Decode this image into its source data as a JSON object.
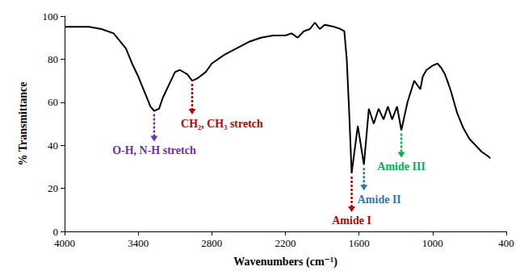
{
  "chart_data": {
    "type": "line",
    "x_label": "Wavenumbers (cm⁻¹)",
    "y_label": "% Transmittance",
    "color": "#000000",
    "x": [
      4000,
      3800,
      3700,
      3600,
      3500,
      3450,
      3400,
      3350,
      3300,
      3270,
      3230,
      3200,
      3150,
      3100,
      3060,
      3000,
      2960,
      2920,
      2850,
      2800,
      2700,
      2600,
      2500,
      2400,
      2300,
      2200,
      2150,
      2100,
      2050,
      2000,
      1960,
      1920,
      1880,
      1800,
      1750,
      1720,
      1700,
      1680,
      1660,
      1610,
      1560,
      1520,
      1480,
      1440,
      1400,
      1365,
      1330,
      1290,
      1255,
      1205,
      1150,
      1100,
      1080,
      1050,
      1000,
      960,
      930,
      900,
      880,
      850,
      800,
      750,
      700,
      650,
      600,
      550,
      530
    ],
    "values": [
      95,
      95,
      94,
      92,
      85,
      78,
      72,
      65,
      58,
      56,
      57,
      62,
      68,
      74,
      75,
      73,
      70,
      71,
      74,
      78,
      82,
      85,
      88,
      90,
      91,
      91,
      92,
      90,
      93,
      94,
      97,
      94,
      96,
      95,
      94,
      93,
      80,
      55,
      27,
      49,
      31,
      57,
      50,
      57,
      52,
      58,
      52,
      58,
      47,
      60,
      70,
      66,
      72,
      75,
      77,
      78,
      76,
      73,
      70,
      65,
      55,
      48,
      43,
      40,
      37,
      35,
      34
    ],
    "xlim": [
      4000,
      400
    ],
    "xticks": [
      4000,
      3400,
      2800,
      2200,
      1600,
      1000,
      400
    ],
    "ylim": [
      0,
      100
    ],
    "yticks": [
      0,
      20,
      40,
      60,
      80,
      100
    ],
    "grid": false,
    "annotations": [
      {
        "text": "O-H, N-H stretch",
        "x": 3270,
        "y": 56,
        "color": "#7030a0"
      },
      {
        "text": "CH₂, CH₃ stretch",
        "x": 2960,
        "y": 70,
        "color": "#c00000"
      },
      {
        "text": "Amide I",
        "x": 1660,
        "y": 27,
        "color": "#c00000"
      },
      {
        "text": "Amide II",
        "x": 1560,
        "y": 31,
        "color": "#2e75b6"
      },
      {
        "text": "Amide III",
        "x": 1255,
        "y": 47,
        "color": "#00b050"
      }
    ]
  }
}
